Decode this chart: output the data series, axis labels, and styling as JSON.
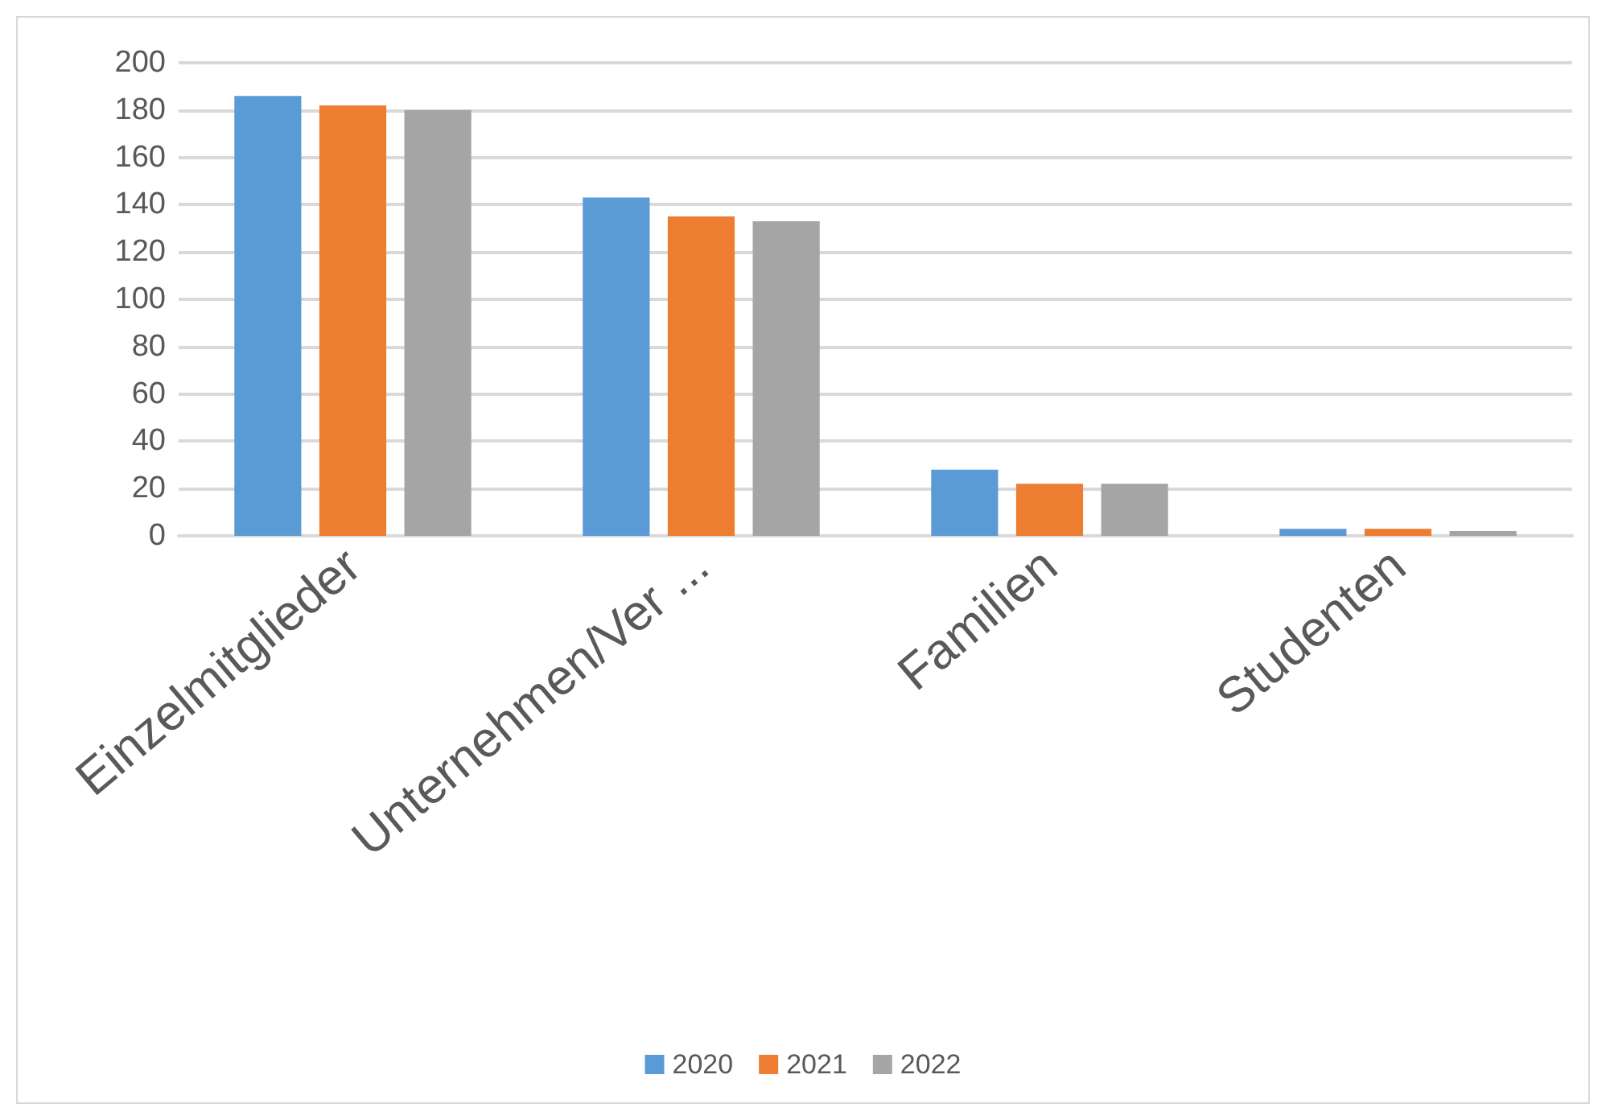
{
  "chart_data": {
    "type": "bar",
    "categories": [
      "Einzelmitglieder",
      "Unternehmen/Ver ...",
      "Familien",
      "Studenten"
    ],
    "series": [
      {
        "name": "2020",
        "color": "#5b9bd5",
        "values": [
          186,
          143,
          28,
          3
        ]
      },
      {
        "name": "2021",
        "color": "#ed7d31",
        "values": [
          182,
          135,
          22,
          3
        ]
      },
      {
        "name": "2022",
        "color": "#a5a5a5",
        "values": [
          180,
          133,
          22,
          2
        ]
      }
    ],
    "ylim": [
      0,
      200
    ],
    "yticks": [
      0,
      20,
      40,
      60,
      80,
      100,
      120,
      140,
      160,
      180,
      200
    ],
    "grid": "y",
    "legend": "bottom"
  }
}
